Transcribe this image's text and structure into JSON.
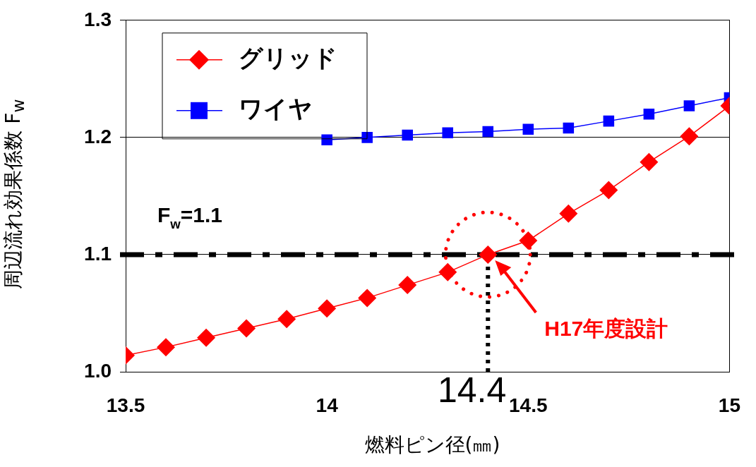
{
  "chart_data": {
    "type": "line",
    "xlabel": "燃料ピン径(㎜)",
    "ylabel": "周辺流れ効果係数 F$_{w}$",
    "xlim": [
      13.5,
      15
    ],
    "xticks": [
      13.5,
      14,
      14.5,
      15
    ],
    "ylim": [
      1.0,
      1.3
    ],
    "yticks": [
      {
        "value": 1.0,
        "label": "1.0"
      },
      1.1,
      1.2,
      1.3
    ],
    "grid": "y",
    "legend": "top left",
    "line_style": "solid",
    "series": [
      {
        "name": "グリッド",
        "color": "#ff0000",
        "marker": "diamond",
        "x": [
          13.5,
          13.6,
          13.7,
          13.8,
          13.9,
          14.0,
          14.1,
          14.2,
          14.3,
          14.4,
          14.5,
          14.6,
          14.7,
          14.8,
          14.9,
          15.0
        ],
        "values": [
          1.014,
          1.021,
          1.029,
          1.037,
          1.045,
          1.054,
          1.063,
          1.074,
          1.085,
          1.1,
          1.112,
          1.135,
          1.155,
          1.179,
          1.201,
          1.227
        ]
      },
      {
        "name": "ワイヤ",
        "color": "#0000ff",
        "marker": "square",
        "x": [
          14.0,
          14.1,
          14.2,
          14.3,
          14.4,
          14.5,
          14.6,
          14.7,
          14.8,
          14.9,
          15.0
        ],
        "values": [
          1.198,
          1.2,
          1.202,
          1.204,
          1.205,
          1.207,
          1.208,
          1.214,
          1.22,
          1.227,
          1.234
        ]
      }
    ],
    "ref_lines": [
      {
        "axis": "y",
        "value": 1.1,
        "label": "F$_{w}$=1.1",
        "color": "#000000",
        "line_style": "dashdot"
      },
      {
        "axis": "x",
        "value": 14.4,
        "label": "14.4",
        "color": "#000000",
        "line_style": "dotted"
      }
    ],
    "annotations": [
      "H17年度設計"
    ]
  }
}
